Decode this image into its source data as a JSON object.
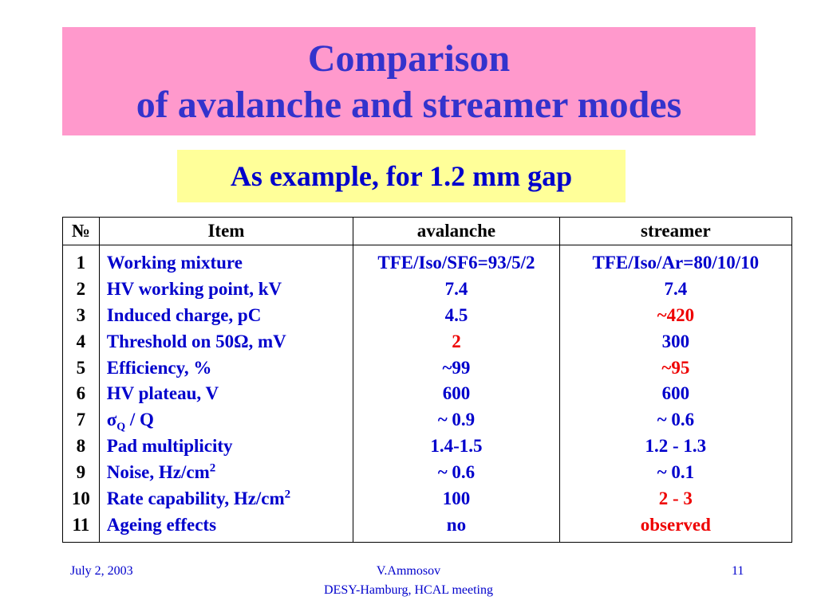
{
  "title": {
    "line1": "Comparison",
    "line2": "of avalanche and  streamer modes"
  },
  "subtitle": "As example, for 1.2 mm gap",
  "table": {
    "headers": [
      "№",
      "Item",
      "avalanche",
      "streamer"
    ],
    "rows": [
      {
        "num": "1",
        "item": "Working mixture",
        "avalanche": "TFE/Iso/SF6=93/5/2",
        "streamer": "TFE/Iso/Ar=80/10/10",
        "streamer_color": "#0000cc"
      },
      {
        "num": "2",
        "item": "HV working point, kV",
        "avalanche": "7.4",
        "streamer": "7.4",
        "streamer_color": "#0000cc"
      },
      {
        "num": "3",
        "item": "Induced charge, pC",
        "avalanche": "4.5",
        "streamer": "~420",
        "streamer_color": "#ee0000"
      },
      {
        "num": "4",
        "item": "Threshold on 50Ω, mV",
        "avalanche": "2",
        "avalanche_color": "#ee0000",
        "streamer": "300",
        "streamer_color": "#0000cc"
      },
      {
        "num": "5",
        "item": "Efficiency, %",
        "avalanche": "~99",
        "streamer": "~95",
        "streamer_color": "#ee0000"
      },
      {
        "num": "6",
        "item": "HV plateau, V",
        "avalanche": "600",
        "streamer": "600",
        "streamer_color": "#0000cc"
      },
      {
        "num": "7",
        "item_symbol": "σ",
        "item_sub": "Q",
        "item_rest": " / Q",
        "avalanche": "~ 0.9",
        "streamer": "~ 0.6",
        "streamer_color": "#0000cc"
      },
      {
        "num": "8",
        "item": "Pad multiplicity",
        "avalanche": "1.4-1.5",
        "streamer": "1.2 - 1.3",
        "streamer_color": "#0000cc"
      },
      {
        "num": "9",
        "item": "Noise, Hz/cm",
        "item_sup": "2",
        "avalanche": "~ 0.6",
        "streamer": "~ 0.1",
        "streamer_color": "#0000cc"
      },
      {
        "num": "10",
        "item": "Rate capability, Hz/cm",
        "item_sup": "2",
        "avalanche": "100",
        "streamer": "2 - 3",
        "streamer_color": "#ee0000"
      },
      {
        "num": "11",
        "item": "Ageing effects",
        "avalanche": "no",
        "streamer": "observed",
        "streamer_color": "#ee0000"
      }
    ]
  },
  "footer": {
    "date": "July 2, 2003",
    "author": "V.Ammosov",
    "event": "DESY-Hamburg,  HCAL  meeting",
    "page": "11"
  },
  "colors": {
    "title_bg": "#ff99cc",
    "title_text": "#3333cc",
    "subtitle_bg": "#ffff99",
    "body_blue": "#0000cc",
    "highlight_red": "#ee0000"
  }
}
